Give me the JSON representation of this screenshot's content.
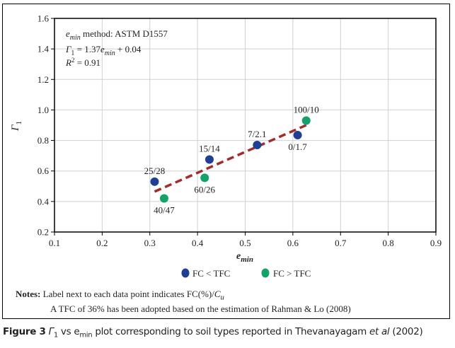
{
  "chart_data": {
    "type": "scatter",
    "title": "",
    "xlabel": "e_min",
    "ylabel": "Γ1",
    "xlim": [
      0.1,
      0.9
    ],
    "ylim": [
      0.2,
      1.6
    ],
    "xticks": [
      "0.1",
      "0.2",
      "0.3",
      "0.4",
      "0.5",
      "0.6",
      "0.7",
      "0.8",
      "0.9"
    ],
    "yticks": [
      "0.2",
      "0.4",
      "0.6",
      "0.8",
      "1.0",
      "1.2",
      "1.4",
      "1.6"
    ],
    "grid": true,
    "legend_position": "bottom-center",
    "series": [
      {
        "name": "FC < TFC",
        "color": "#1f3f94",
        "points": [
          {
            "x": 0.31,
            "y": 0.53,
            "label": "25/28"
          },
          {
            "x": 0.425,
            "y": 0.675,
            "label": "15/14"
          },
          {
            "x": 0.525,
            "y": 0.77,
            "label": "7/2.1"
          },
          {
            "x": 0.61,
            "y": 0.835,
            "label": "0/1.7"
          }
        ]
      },
      {
        "name": "FC > TFC",
        "color": "#12a36a",
        "points": [
          {
            "x": 0.33,
            "y": 0.42,
            "label": "40/47"
          },
          {
            "x": 0.415,
            "y": 0.555,
            "label": "60/26"
          },
          {
            "x": 0.628,
            "y": 0.93,
            "label": "100/10"
          }
        ]
      }
    ],
    "trendline": {
      "slope": 1.37,
      "intercept": 0.04,
      "x_range": [
        0.31,
        0.628
      ],
      "color": "#a52a2a",
      "style": "dashed"
    },
    "annotation": {
      "line1_var": "e",
      "line1_sub": "min",
      "line1_text": " method: ASTM D1557",
      "line2_lhs": "Γ",
      "line2_lhs_sub": "1",
      "line2_mid": " = 1.37",
      "line2_var": "e",
      "line2_var_sub": "min",
      "line2_end": " + 0.04",
      "line3_var": "R",
      "line3_sup": "2",
      "line3_end": " = 0.91"
    }
  },
  "notes": {
    "label": "Notes:",
    "line1": "Label next to each data point indicates FC(%)/",
    "line1_var": "C",
    "line1_sub": "u",
    "line2": "A TFC of 36% has been adopted based on the estimation of Rahman & Lo (2008)"
  },
  "caption": {
    "figure": "Figure 3",
    "gamma": "Γ",
    "gamma_sub": "1",
    "vs": " vs e",
    "emin_sub": "min",
    "rest": " plot corresponding to soil types reported in Thevanayagam ",
    "etal": "et al",
    "year": " (2002)"
  }
}
